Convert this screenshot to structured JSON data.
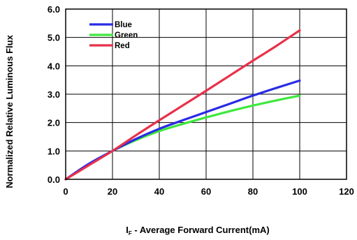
{
  "chart_data": {
    "type": "line",
    "title": "",
    "xlabel": "I F - Average Forward Current(mA)",
    "xlabel_main": "I",
    "xlabel_sub": "F",
    "xlabel_rest": " - Average Forward Current(mA)",
    "ylabel": "Normalized Relative Luminous Flux",
    "xlim": [
      0,
      120
    ],
    "ylim": [
      0.0,
      6.0
    ],
    "xticks": [
      0,
      20,
      40,
      60,
      80,
      100,
      120
    ],
    "xtick_labels": [
      "0",
      "20",
      "40",
      "60",
      "80",
      "100",
      "120"
    ],
    "yticks": [
      0.0,
      1.0,
      2.0,
      3.0,
      4.0,
      5.0,
      6.0
    ],
    "ytick_labels": [
      "0.0",
      "1.0",
      "2.0",
      "3.0",
      "4.0",
      "5.0",
      "6.0"
    ],
    "grid": true,
    "legend_position": "top-left",
    "series": [
      {
        "name": "Blue",
        "color": "#2a2ae6",
        "x": [
          0,
          10,
          20,
          30,
          40,
          50,
          60,
          70,
          80,
          90,
          100
        ],
        "y": [
          0.0,
          0.55,
          1.0,
          1.42,
          1.78,
          2.08,
          2.37,
          2.66,
          2.95,
          3.22,
          3.48
        ]
      },
      {
        "name": "Green",
        "color": "#3ee83e",
        "x": [
          0,
          10,
          20,
          30,
          40,
          50,
          60,
          70,
          80,
          90,
          100
        ],
        "y": [
          0.0,
          0.52,
          1.0,
          1.38,
          1.7,
          1.95,
          2.18,
          2.4,
          2.6,
          2.78,
          2.95
        ]
      },
      {
        "name": "Red",
        "color": "#e8314a",
        "x": [
          0,
          10,
          20,
          30,
          40,
          50,
          60,
          70,
          80,
          90,
          100
        ],
        "y": [
          0.0,
          0.5,
          1.0,
          1.55,
          2.08,
          2.6,
          3.12,
          3.65,
          4.18,
          4.7,
          5.25
        ]
      }
    ]
  }
}
